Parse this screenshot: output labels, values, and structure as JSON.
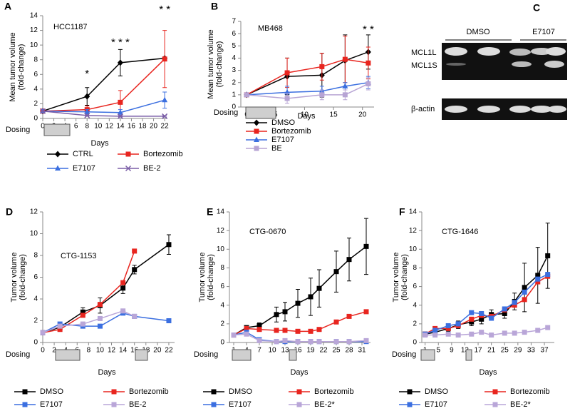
{
  "chart_data": [
    {
      "panel": "A",
      "type": "line",
      "title": "HCC1187",
      "xlabel": "Days",
      "ylabel": [
        "Mean tumor volume",
        "(fold-change)"
      ],
      "dosing_label": "Dosing",
      "x": [
        0,
        8,
        14,
        22
      ],
      "xlim": [
        0,
        22.5
      ],
      "xticks": [
        0,
        2,
        4,
        6,
        8,
        10,
        12,
        14,
        16,
        18,
        20,
        22
      ],
      "ylim": [
        0,
        14
      ],
      "yticks": [
        0,
        2,
        4,
        6,
        8,
        10,
        12,
        14
      ],
      "series": [
        {
          "name": "CTRL",
          "color": "#000000",
          "marker": "diamond",
          "values": [
            1,
            3,
            7.6,
            8.2
          ],
          "errors": [
            0,
            1.2,
            1.8,
            0
          ]
        },
        {
          "name": "Bortezomib",
          "color": "#e8251f",
          "marker": "square",
          "values": [
            1,
            1.2,
            2.2,
            8.1
          ],
          "errors": [
            0,
            0.5,
            1.6,
            3.9
          ]
        },
        {
          "name": "E7107",
          "color": "#3b6fe0",
          "marker": "triangle",
          "values": [
            1,
            0.9,
            0.8,
            2.5
          ],
          "errors": [
            0,
            0.3,
            0.4,
            1.1
          ]
        },
        {
          "name": "BE-2",
          "color": "#7b5ea7",
          "marker": "x",
          "values": [
            1,
            0.4,
            0.3,
            0.3
          ],
          "errors": [
            0,
            0.1,
            0.1,
            0.1
          ]
        }
      ],
      "annotations": [
        {
          "x": 8,
          "marks": [
            {
              "text": "*",
              "color": "#7b6fc0"
            }
          ]
        },
        {
          "x": 14,
          "marks": [
            {
              "text": "*",
              "color": "#e8251f"
            },
            {
              "text": "*",
              "color": "#3b6fe0"
            },
            {
              "text": "*",
              "color": "#7b6fc0"
            }
          ]
        },
        {
          "x": 22,
          "marks": [
            {
              "text": "*",
              "color": "#1f2a8a"
            },
            {
              "text": "*",
              "color": "#7b6fc0"
            }
          ]
        }
      ]
    },
    {
      "panel": "B",
      "type": "line",
      "title": "MB468",
      "xlabel": "Days",
      "ylabel": [
        "Mean tumor volume",
        "(fold-change)"
      ],
      "dosing_label": "Dosing",
      "x": [
        0,
        7,
        13,
        17,
        21
      ],
      "xlim": [
        -1,
        22
      ],
      "xticks": [
        0,
        5,
        10,
        15,
        20
      ],
      "ylim": [
        0,
        7
      ],
      "yticks": [
        0,
        1,
        2,
        3,
        4,
        5,
        6,
        7
      ],
      "series": [
        {
          "name": "DMSO",
          "color": "#000000",
          "marker": "diamond",
          "values": [
            1,
            2.5,
            2.6,
            3.8,
            4.5
          ],
          "errors": [
            0,
            1.5,
            1.8,
            2.1,
            1.4
          ]
        },
        {
          "name": "Bortezomib",
          "color": "#e8251f",
          "marker": "square",
          "values": [
            1,
            2.8,
            3.3,
            3.9,
            3.6
          ],
          "errors": [
            0,
            1.2,
            1.1,
            1.9,
            1.3
          ]
        },
        {
          "name": "E7107",
          "color": "#3b6fe0",
          "marker": "triangle",
          "values": [
            1,
            1.2,
            1.3,
            1.7,
            2.0
          ],
          "errors": [
            0,
            0.5,
            0.4,
            0.3,
            0.5
          ]
        },
        {
          "name": "BE",
          "color": "#b7a4d4",
          "marker": "square",
          "values": [
            1,
            0.7,
            1.0,
            1.0,
            1.9
          ],
          "errors": [
            0,
            0.4,
            0.4,
            0.4,
            0.5
          ]
        }
      ],
      "annotations": [
        {
          "x": 21,
          "marks": [
            {
              "text": "*",
              "color": "#3b6fe0"
            },
            {
              "text": "*",
              "color": "#7b6fc0"
            }
          ]
        }
      ]
    },
    {
      "panel": "D",
      "type": "line",
      "title": "CTG-1153",
      "xlabel": "Days",
      "ylabel": [
        "Tumor volume",
        "(fold-change)"
      ],
      "dosing_label": "Dosing",
      "x": [
        0,
        3,
        7,
        10,
        14,
        16,
        22
      ],
      "xlim": [
        0,
        23
      ],
      "xticks": [
        0,
        2,
        4,
        6,
        8,
        10,
        12,
        14,
        16,
        18,
        20,
        22
      ],
      "ylim": [
        0,
        12
      ],
      "yticks": [
        0,
        2,
        4,
        6,
        8,
        10,
        12
      ],
      "series": [
        {
          "name": "DMSO",
          "color": "#000000",
          "marker": "square",
          "values": [
            0.9,
            1.4,
            2.8,
            3.4,
            5.0,
            6.7,
            9.0
          ],
          "errors": [
            0.1,
            0.2,
            0.4,
            0.7,
            0.5,
            0.4,
            0.9
          ]
        },
        {
          "name": "Bortezomib",
          "color": "#e8251f",
          "marker": "square",
          "values": [
            0.9,
            1.2,
            2.5,
            3.5,
            5.5,
            8.4,
            null
          ]
        },
        {
          "name": "E7107",
          "color": "#3b6fe0",
          "marker": "square",
          "values": [
            0.9,
            1.7,
            1.5,
            1.5,
            2.7,
            2.4,
            2.0
          ]
        },
        {
          "name": "BE-2",
          "color": "#b9a6d8",
          "marker": "square",
          "values": [
            0.9,
            1.5,
            1.7,
            2.2,
            2.9,
            2.4,
            null
          ]
        }
      ]
    },
    {
      "panel": "E",
      "type": "line",
      "title": "CTG-0670",
      "xlabel": "Days",
      "ylabel": [
        "Tumor volume",
        "(fold-change)"
      ],
      "dosing_label": "Dosing",
      "x": [
        1,
        4,
        7,
        11,
        13,
        16,
        19,
        21,
        25,
        28,
        32
      ],
      "xlim": [
        0,
        33
      ],
      "xticks": [
        1,
        4,
        7,
        10,
        13,
        16,
        19,
        22,
        25,
        28,
        31
      ],
      "ylim": [
        0,
        14
      ],
      "yticks": [
        0,
        2,
        4,
        6,
        8,
        10,
        12,
        14
      ],
      "series": [
        {
          "name": "DMSO",
          "color": "#000000",
          "marker": "square",
          "values": [
            0.8,
            1.6,
            1.8,
            3.0,
            3.3,
            4.2,
            4.9,
            5.8,
            7.6,
            8.9,
            10.3
          ],
          "errors": [
            0.1,
            0.2,
            0.3,
            0.8,
            1.0,
            1.5,
            2.0,
            2.0,
            2.2,
            2.3,
            3.0
          ]
        },
        {
          "name": "Bortezomib",
          "color": "#e8251f",
          "marker": "square",
          "values": [
            0.8,
            1.5,
            1.4,
            1.3,
            1.3,
            1.2,
            1.2,
            1.4,
            2.2,
            2.8,
            3.3
          ]
        },
        {
          "name": "E7107",
          "color": "#3b6fe0",
          "marker": "square",
          "values": [
            0.8,
            1.1,
            0.3,
            0.1,
            0.1,
            0.1,
            0.1,
            0.1,
            0.1,
            0.1,
            0.1
          ]
        },
        {
          "name": "BE-2*",
          "color": "#b9a6d8",
          "marker": "square",
          "values": [
            0.8,
            0.9,
            0.2,
            0.1,
            0.2,
            0.1,
            0.1,
            0.1,
            0.1,
            0.1,
            0.2
          ]
        }
      ]
    },
    {
      "panel": "F",
      "type": "line",
      "title": "CTG-1646",
      "xlabel": "Days",
      "ylabel": [
        "Tumor volume",
        "(fold-change)"
      ],
      "dosing_label": "Dosing",
      "x": [
        1,
        4,
        8,
        11,
        15,
        18,
        21,
        25,
        28,
        31,
        35,
        38
      ],
      "xlim": [
        0,
        40
      ],
      "xticks": [
        1,
        5,
        9,
        13,
        17,
        21,
        25,
        29,
        33,
        37
      ],
      "ylim": [
        0,
        14
      ],
      "yticks": [
        0,
        2,
        4,
        6,
        8,
        10,
        12,
        14
      ],
      "series": [
        {
          "name": "DMSO",
          "color": "#000000",
          "marker": "square",
          "values": [
            0.9,
            1.1,
            1.5,
            1.9,
            2.2,
            2.5,
            3.0,
            3.1,
            4.4,
            5.9,
            7.2,
            9.3
          ],
          "errors": [
            0.1,
            0.2,
            0.3,
            0.4,
            0.4,
            0.5,
            0.5,
            0.5,
            0.9,
            2.6,
            3.0,
            3.5
          ]
        },
        {
          "name": "Bortezomib",
          "color": "#e8251f",
          "marker": "square",
          "values": [
            0.9,
            1.5,
            1.5,
            1.8,
            2.5,
            2.9,
            2.8,
            3.5,
            4.0,
            4.6,
            6.5,
            7.1
          ]
        },
        {
          "name": "E7107",
          "color": "#3b6fe0",
          "marker": "square",
          "values": [
            0.9,
            1.3,
            1.8,
            2.0,
            3.2,
            3.1,
            2.6,
            3.6,
            4.3,
            5.4,
            6.8,
            7.3
          ]
        },
        {
          "name": "BE-2*",
          "color": "#b9a6d8",
          "marker": "square",
          "values": [
            0.8,
            0.8,
            0.9,
            0.8,
            0.9,
            1.1,
            0.8,
            1.0,
            1.0,
            1.1,
            1.3,
            1.6
          ]
        }
      ]
    }
  ],
  "blot": {
    "panel": "C",
    "columns": [
      "DMSO",
      "E7107"
    ],
    "rows": [
      "MCL1L",
      "MCL1S",
      "β-actin"
    ]
  }
}
